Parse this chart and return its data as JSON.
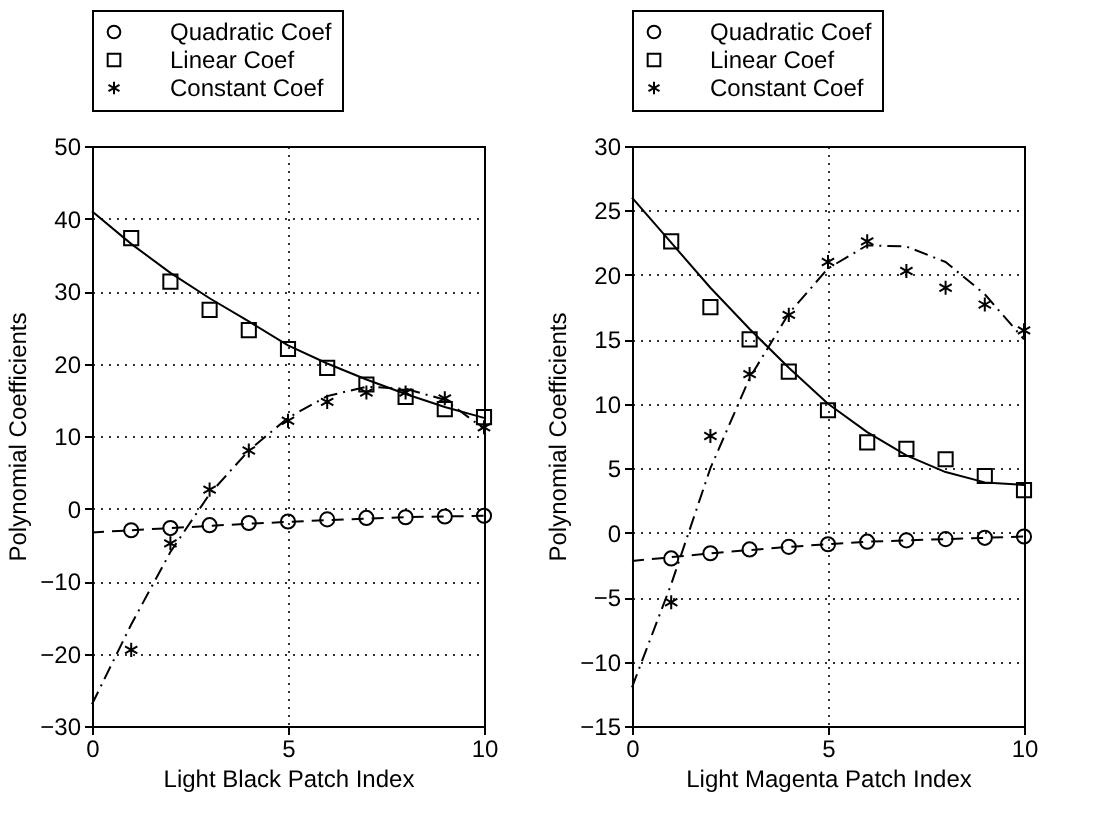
{
  "chart_data": [
    {
      "type": "scatter",
      "xlabel": "Light Black Patch Index",
      "ylabel": "Polynomial Coefficients",
      "xlim": [
        0,
        10
      ],
      "xticks": [
        0,
        5,
        10
      ],
      "ylim": [
        -30,
        50
      ],
      "yticks": [
        -30,
        -20,
        -10,
        0,
        10,
        20,
        30,
        40,
        50
      ],
      "grid": true,
      "legend": "top",
      "series": [
        {
          "name": "Quadratic Coef",
          "type": "scatter",
          "marker": "circle",
          "color": "#000000",
          "x": [
            1,
            2,
            3,
            4,
            5,
            6,
            7,
            8,
            9,
            10
          ],
          "values": [
            -3,
            -2.7,
            -2.3,
            -2,
            -1.8,
            -1.5,
            -1.3,
            -1.2,
            -1.1,
            -1
          ]
        },
        {
          "name": "Linear Coef",
          "type": "scatter",
          "marker": "square",
          "color": "#000000",
          "x": [
            1,
            2,
            3,
            4,
            5,
            6,
            7,
            8,
            9,
            10
          ],
          "values": [
            37.3,
            31.3,
            27.4,
            24.6,
            22,
            19.4,
            17.1,
            15.4,
            13.7,
            12.6
          ]
        },
        {
          "name": "Constant Coef",
          "type": "scatter",
          "marker": "cross",
          "color": "#000000",
          "x": [
            1,
            2,
            3,
            4,
            5,
            6,
            7,
            8,
            9,
            10
          ],
          "values": [
            -19.5,
            -4.8,
            2.6,
            8,
            12.1,
            14.7,
            16,
            16,
            15.2,
            11.2
          ]
        },
        {
          "type": "line",
          "line_style": "dashed",
          "marker": "none",
          "color": "#000000",
          "x": [
            0,
            2,
            4,
            6,
            8,
            10
          ],
          "values": [
            -3.3,
            -2.7,
            -2.1,
            -1.6,
            -1.2,
            -1
          ]
        },
        {
          "type": "line",
          "line_style": "solid",
          "marker": "none",
          "color": "#000000",
          "x": [
            0,
            1,
            2,
            3,
            4,
            5,
            6,
            7,
            8,
            9,
            10
          ],
          "values": [
            41,
            36.5,
            32.5,
            29,
            25.8,
            22.5,
            20,
            17.8,
            15.8,
            14,
            12.5
          ]
        },
        {
          "type": "line",
          "line_style": "dashdot",
          "marker": "none",
          "color": "#000000",
          "x": [
            0,
            1,
            2,
            3,
            4,
            5,
            6,
            7,
            8,
            9,
            10
          ],
          "values": [
            -27,
            -16,
            -6,
            2,
            8,
            12.5,
            15.5,
            16.8,
            16.5,
            15,
            11
          ]
        }
      ]
    },
    {
      "type": "scatter",
      "xlabel": "Light Magenta Patch Index",
      "ylabel": "Polynomial Coefficients",
      "xlim": [
        0,
        10
      ],
      "xticks": [
        0,
        5,
        10
      ],
      "ylim": [
        -15,
        30
      ],
      "yticks": [
        -15,
        -10,
        -5,
        0,
        5,
        10,
        15,
        20,
        25,
        30
      ],
      "grid": true,
      "legend": "top",
      "series": [
        {
          "name": "Quadratic Coef",
          "type": "scatter",
          "marker": "circle",
          "color": "#000000",
          "x": [
            1,
            2,
            3,
            4,
            5,
            6,
            7,
            8,
            9,
            10
          ],
          "values": [
            -2,
            -1.6,
            -1.3,
            -1.1,
            -0.9,
            -0.7,
            -0.6,
            -0.5,
            -0.4,
            -0.3
          ]
        },
        {
          "name": "Linear Coef",
          "type": "scatter",
          "marker": "square",
          "color": "#000000",
          "x": [
            1,
            2,
            3,
            4,
            5,
            6,
            7,
            8,
            9,
            10
          ],
          "values": [
            22.6,
            17.5,
            15,
            12.5,
            9.5,
            7,
            6.5,
            5.7,
            4.4,
            3.3
          ]
        },
        {
          "name": "Constant Coef",
          "type": "scatter",
          "marker": "cross",
          "color": "#000000",
          "x": [
            1,
            2,
            3,
            4,
            5,
            6,
            7,
            8,
            9,
            10
          ],
          "values": [
            -5.4,
            7.5,
            12.3,
            16.9,
            21,
            22.6,
            20.3,
            19,
            17.7,
            15.7
          ]
        },
        {
          "type": "line",
          "line_style": "dashed",
          "marker": "none",
          "color": "#000000",
          "x": [
            0,
            2,
            4,
            6,
            8,
            10
          ],
          "values": [
            -2.2,
            -1.6,
            -1.1,
            -0.7,
            -0.5,
            -0.3
          ]
        },
        {
          "type": "line",
          "line_style": "solid",
          "marker": "none",
          "color": "#000000",
          "x": [
            0,
            1,
            2,
            3,
            4,
            5,
            6,
            7,
            8,
            9,
            10
          ],
          "values": [
            26,
            22.5,
            19,
            15.8,
            12.8,
            10,
            7.8,
            6,
            4.7,
            3.9,
            3.7
          ]
        },
        {
          "type": "line",
          "line_style": "dashdot",
          "marker": "none",
          "color": "#000000",
          "x": [
            0,
            1,
            2,
            3,
            4,
            5,
            6,
            7,
            8,
            9,
            10
          ],
          "values": [
            -12,
            -4,
            5,
            12,
            17,
            20.5,
            22.3,
            22.2,
            21,
            18.5,
            15
          ]
        }
      ]
    }
  ]
}
